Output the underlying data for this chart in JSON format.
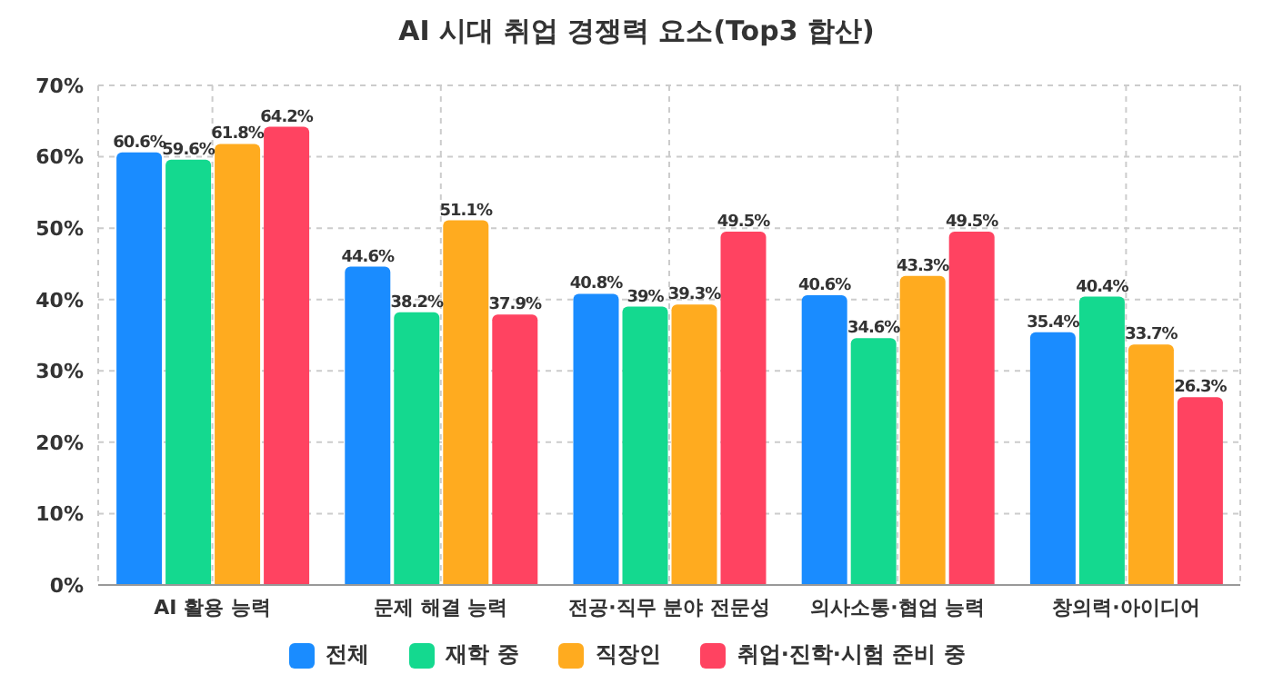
{
  "chart_data": {
    "type": "bar",
    "title": "AI 시대 취업 경쟁력 요소(Top3 합산)",
    "categories": [
      "AI 활용 능력",
      "문제 해결 능력",
      "전공·직무 분야 전문성",
      "의사소통·협업 능력",
      "창의력·아이디어"
    ],
    "series": [
      {
        "name": "전체",
        "color": "#1a8cff",
        "values": [
          60.6,
          44.6,
          40.8,
          40.6,
          35.4
        ],
        "value_labels": [
          "60.6%",
          "44.6%",
          "40.8%",
          "40.6%",
          "35.4%"
        ]
      },
      {
        "name": "재학 중",
        "color": "#14d98f",
        "values": [
          59.6,
          38.2,
          39,
          34.6,
          40.4
        ],
        "value_labels": [
          "59.6%",
          "38.2%",
          "39%",
          "34.6%",
          "40.4%"
        ]
      },
      {
        "name": "직장인",
        "color": "#ffab1f",
        "values": [
          61.8,
          51.1,
          39.3,
          43.3,
          33.7
        ],
        "value_labels": [
          "61.8%",
          "51.1%",
          "39.3%",
          "43.3%",
          "33.7%"
        ]
      },
      {
        "name": "취업·진학·시험 준비 중",
        "color": "#ff4361",
        "values": [
          64.2,
          37.9,
          49.5,
          49.5,
          26.3
        ],
        "value_labels": [
          "64.2%",
          "37.9%",
          "49.5%",
          "49.5%",
          "26.3%"
        ]
      }
    ],
    "ylim": [
      0,
      70
    ],
    "yticks": [
      {
        "value": 0,
        "label": "0%"
      },
      {
        "value": 10,
        "label": "10%"
      },
      {
        "value": 20,
        "label": "20%"
      },
      {
        "value": 30,
        "label": "30%"
      },
      {
        "value": 40,
        "label": "40%"
      },
      {
        "value": 50,
        "label": "50%"
      },
      {
        "value": 60,
        "label": "60%"
      },
      {
        "value": 70,
        "label": "70%"
      }
    ],
    "grid": true,
    "legend": "bottom"
  }
}
